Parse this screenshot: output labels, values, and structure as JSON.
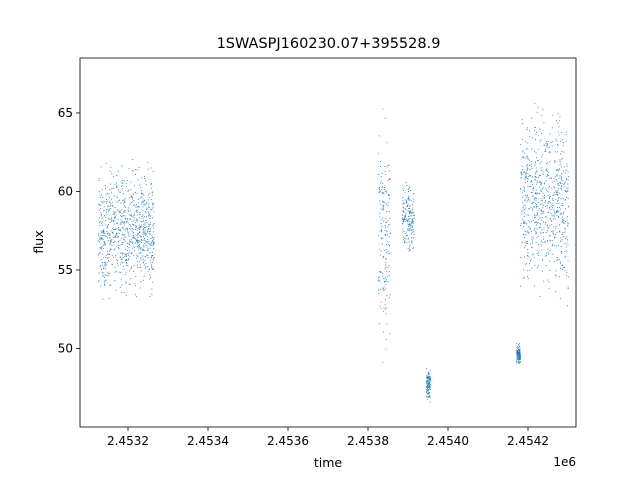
{
  "chart_data": {
    "type": "scatter",
    "title": "1SWASPJ160230.07+395528.9",
    "xlabel": "time",
    "ylabel": "flux",
    "x_offset_label": "1e6",
    "xlim": [
      2453080,
      2454320
    ],
    "ylim": [
      45,
      68.5
    ],
    "xticks": [
      2.4532,
      2.4534,
      2.4536,
      2.4538,
      2.454,
      2.4542
    ],
    "xtick_labels": [
      "2.4532",
      "2.4534",
      "2.4536",
      "2.4538",
      "2.4540",
      "2.4542"
    ],
    "yticks": [
      50,
      55,
      60,
      65
    ],
    "ytick_labels": [
      "50",
      "55",
      "60",
      "65"
    ],
    "grid": false,
    "marker_color": "#1f77b4",
    "segments": [
      {
        "t_start": 2453125,
        "t_end": 2453265,
        "y_min": 52.5,
        "y_max": 62.5
      },
      {
        "t_start": 2453825,
        "t_end": 2453855,
        "y_min": 47.5,
        "y_max": 66.5
      },
      {
        "t_start": 2453885,
        "t_end": 2453915,
        "y_min": 55.5,
        "y_max": 61.0
      },
      {
        "t_start": 2453945,
        "t_end": 2453955,
        "y_min": 46.5,
        "y_max": 49.0
      },
      {
        "t_start": 2454170,
        "t_end": 2454180,
        "y_min": 48.8,
        "y_max": 50.5
      },
      {
        "t_start": 2454180,
        "t_end": 2454300,
        "y_min": 52.0,
        "y_max": 67.0
      }
    ]
  }
}
